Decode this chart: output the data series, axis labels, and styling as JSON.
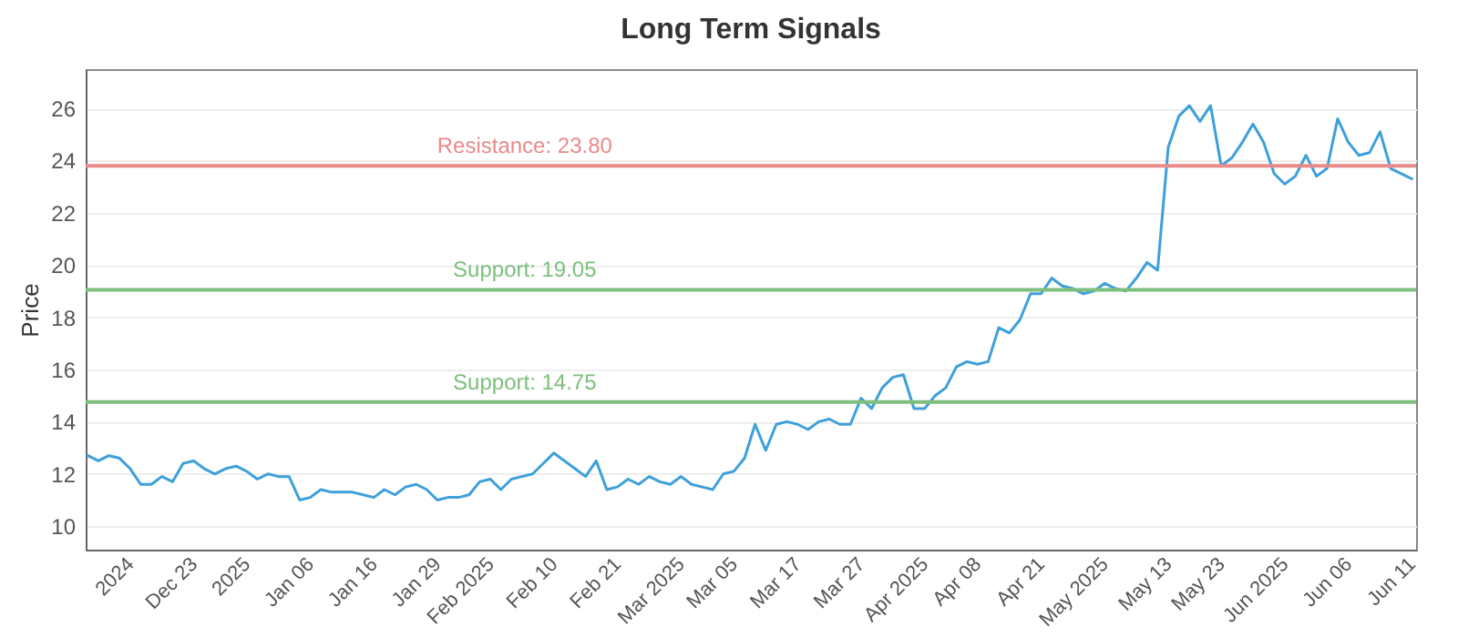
{
  "chart_data": {
    "type": "line",
    "title": "Long Term Signals",
    "ylabel": "Price",
    "categories": [
      null,
      null,
      null,
      null,
      "2024",
      null,
      null,
      null,
      null,
      null,
      "Dec 23",
      null,
      null,
      null,
      null,
      "2025",
      null,
      null,
      null,
      null,
      null,
      "Jan 06",
      null,
      null,
      null,
      null,
      null,
      "Jan 16",
      null,
      null,
      null,
      null,
      null,
      "Jan 29",
      null,
      null,
      null,
      null,
      "Feb 2025",
      null,
      null,
      null,
      null,
      null,
      "Feb 10",
      null,
      null,
      null,
      null,
      null,
      "Feb 21",
      null,
      null,
      null,
      null,
      null,
      "Mar 2025",
      null,
      null,
      null,
      null,
      "Mar 05",
      null,
      null,
      null,
      null,
      null,
      "Mar 17",
      null,
      null,
      null,
      null,
      null,
      "Mar 27",
      null,
      null,
      null,
      null,
      null,
      "Apr 2025",
      null,
      null,
      null,
      null,
      "Apr 08",
      null,
      null,
      null,
      null,
      null,
      "Apr 21",
      null,
      null,
      null,
      null,
      null,
      "May 2025",
      null,
      null,
      null,
      null,
      null,
      "May 13",
      null,
      null,
      null,
      null,
      "May 23",
      null,
      null,
      null,
      null,
      null,
      "Jun 2025",
      null,
      null,
      null,
      null,
      null,
      "Jun 06",
      null,
      null,
      null,
      null,
      null,
      "Jun 11"
    ],
    "series": [
      {
        "color": "#3ea0da",
        "values": [
          12.7,
          12.5,
          12.7,
          12.6,
          12.2,
          11.6,
          11.6,
          11.9,
          11.7,
          12.4,
          12.5,
          12.2,
          12.0,
          12.2,
          12.3,
          12.1,
          11.8,
          12.0,
          11.9,
          11.9,
          11.0,
          11.1,
          11.4,
          11.3,
          11.3,
          11.3,
          11.2,
          11.1,
          11.4,
          11.2,
          11.5,
          11.6,
          11.4,
          11.0,
          11.1,
          11.1,
          11.2,
          11.7,
          11.8,
          11.4,
          11.8,
          11.9,
          12.0,
          12.4,
          12.8,
          12.5,
          12.2,
          11.9,
          12.5,
          11.4,
          11.5,
          11.8,
          11.6,
          11.9,
          11.7,
          11.6,
          11.9,
          11.6,
          11.5,
          11.4,
          12.0,
          12.1,
          12.6,
          13.9,
          12.9,
          13.9,
          14.0,
          13.9,
          13.7,
          14.0,
          14.1,
          13.9,
          13.9,
          14.9,
          14.5,
          15.3,
          15.7,
          15.8,
          14.5,
          14.5,
          15.0,
          15.3,
          16.1,
          16.3,
          16.2,
          16.3,
          17.6,
          17.4,
          17.9,
          18.9,
          18.9,
          19.5,
          19.2,
          19.1,
          18.9,
          19.0,
          19.3,
          19.1,
          19.0,
          19.5,
          20.1,
          19.8,
          24.5,
          25.7,
          26.1,
          25.5,
          26.1,
          23.8,
          24.1,
          24.7,
          25.4,
          24.7,
          23.5,
          23.1,
          23.4,
          24.2,
          23.4,
          23.7,
          25.6,
          24.7,
          24.2,
          24.3,
          25.1,
          23.7,
          23.5,
          23.3
        ]
      }
    ],
    "ylim": [
      9.1,
      27.5
    ],
    "yticks": [
      10,
      12,
      14,
      16,
      18,
      20,
      22,
      24,
      26
    ],
    "grid": "y",
    "marker": "none",
    "line_style": "solid",
    "ref_lines": [
      {
        "axis": "y",
        "value": 23.8,
        "label": "Resistance: 23.80",
        "color": "#e88a8a"
      },
      {
        "axis": "y",
        "value": 19.05,
        "label": "Support: 19.05",
        "color": "#7dbf7d"
      },
      {
        "axis": "y",
        "value": 14.75,
        "label": "Support: 14.75",
        "color": "#7dbf7d"
      }
    ]
  }
}
